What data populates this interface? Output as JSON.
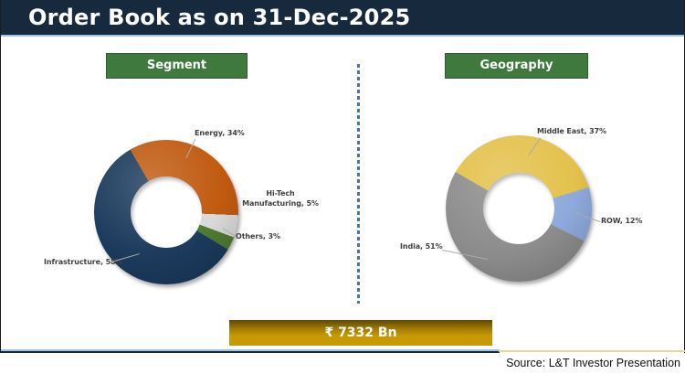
{
  "title": "Order Book as on 31-Dec-2025",
  "total": {
    "label": "₹ 7332 Bn"
  },
  "source": "Source: L&T Investor Presentation",
  "colors": {
    "title_bar_navy": "#16293D",
    "title_underline_blue": "#9DC3E6",
    "header_green": "#3E7A3E",
    "header_green_border": "#2E5C2E",
    "divider_blue": "#4A72B8",
    "total_bar_gold": "#C79A03",
    "total_bar_gold_dark": "#5F4604",
    "bottom_border_yellow": "#E9D98F",
    "label_gray": "#3F3F3F"
  },
  "chart_data": [
    {
      "type": "donut",
      "title": "Segment",
      "units": "%",
      "start_angle_deg": -30,
      "slices": [
        {
          "label": "Energy",
          "value": 34,
          "color": "#C05A10",
          "display": "Energy, 34%"
        },
        {
          "label": "Hi-Tech Manufacturing",
          "value": 5,
          "color": "#D9D9D9",
          "display": "Hi-Tech Manufacturing, 5%"
        },
        {
          "label": "Others",
          "value": 3,
          "color": "#4E7B31",
          "display": "Others, 3%"
        },
        {
          "label": "Infrastructure",
          "value": 58,
          "color": "#1B3A5C",
          "display": "Infrastructure, 58%"
        }
      ]
    },
    {
      "type": "donut",
      "title": "Geography",
      "units": "%",
      "start_angle_deg": -60,
      "slices": [
        {
          "label": "Middle East",
          "value": 37,
          "color": "#E3C14B",
          "display": "Middle East, 37%"
        },
        {
          "label": "ROW",
          "value": 12,
          "color": "#8EA9DB",
          "display": "ROW, 12%"
        },
        {
          "label": "India",
          "value": 51,
          "color": "#8C8C8C",
          "display": "India, 51%"
        }
      ]
    }
  ]
}
